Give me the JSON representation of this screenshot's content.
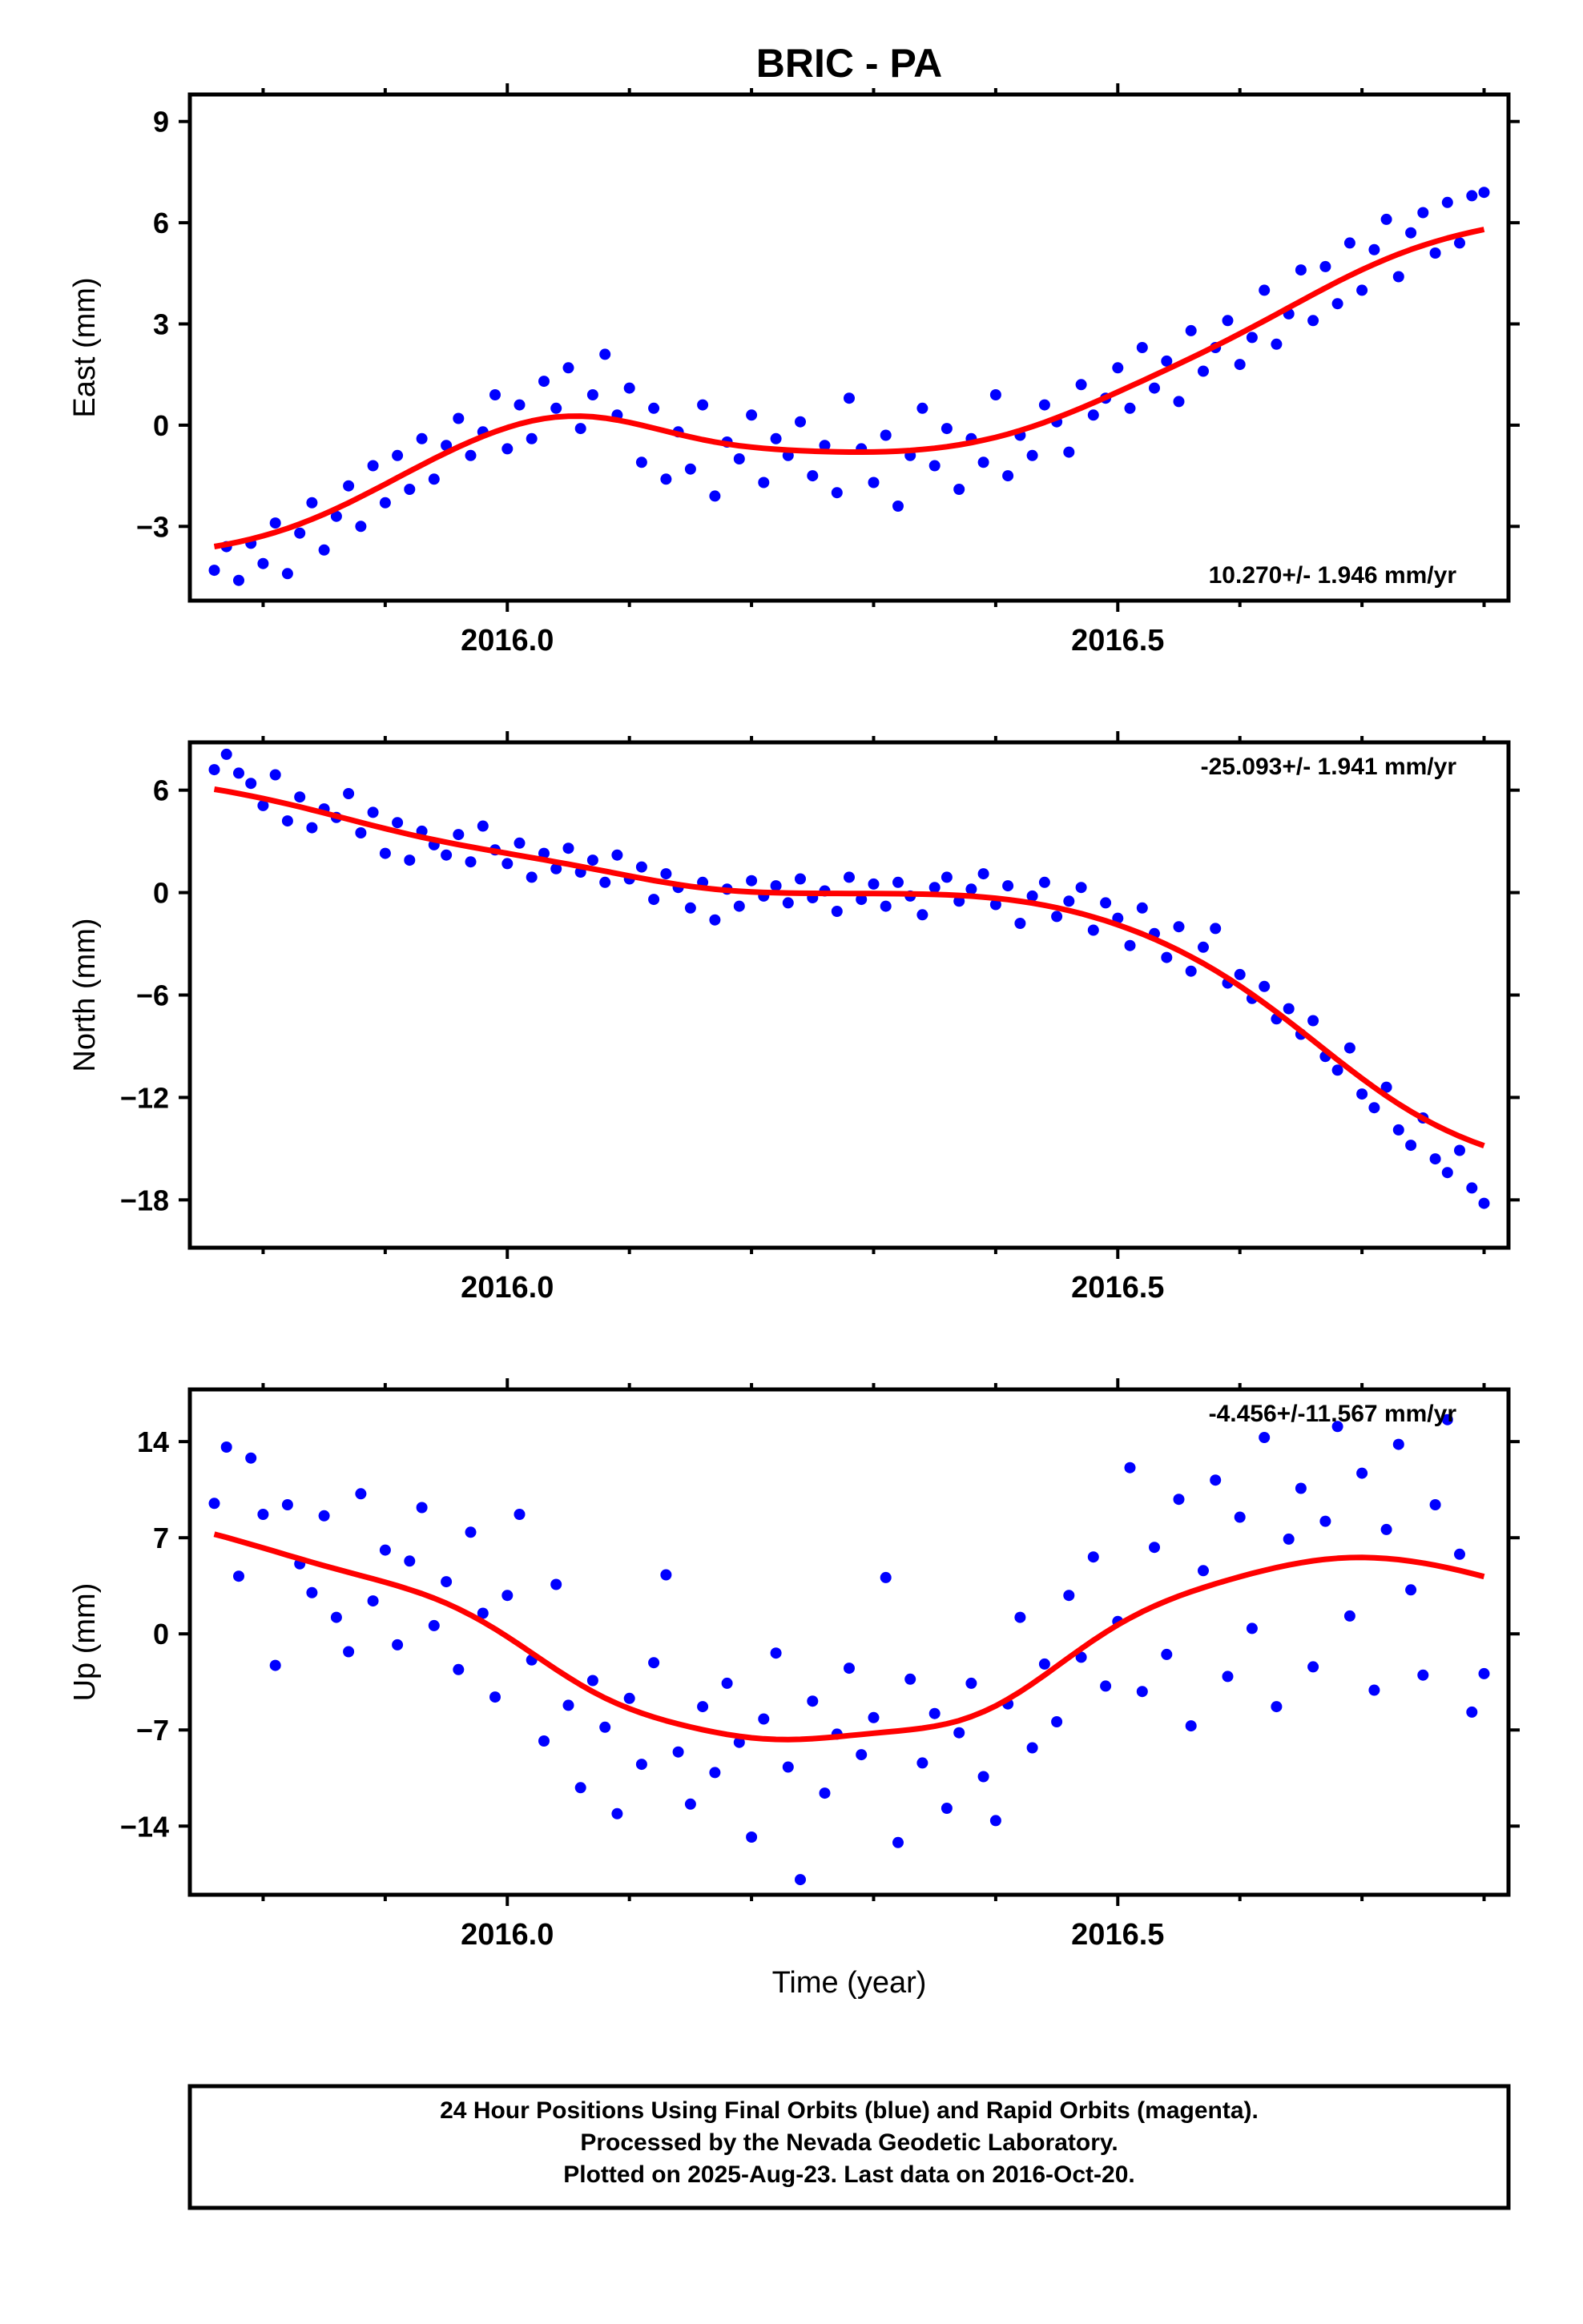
{
  "title": "BRIC - PA",
  "xlabel": "Time (year)",
  "footer": [
    "24 Hour Positions Using Final Orbits (blue) and Rapid Orbits (magenta).",
    "Processed by the Nevada Geodetic Laboratory.",
    "Plotted on 2025-Aug-23. Last data on 2016-Oct-20."
  ],
  "colors": {
    "points": "#0000ff",
    "fit": "#ff0000",
    "frame": "#000000"
  },
  "chart_data": [
    {
      "type": "scatter",
      "ylabel": "East (mm)",
      "rate_label": "10.270+/- 1.946 mm/yr",
      "xlim": [
        2015.74,
        2016.82
      ],
      "ylim": [
        -5.2,
        9.8
      ],
      "yticks": [
        -3,
        0,
        3,
        6,
        9
      ],
      "ytick_labels": [
        "−3",
        "0",
        "3",
        "6",
        "9"
      ],
      "xticks": [
        2016.0,
        2016.5
      ],
      "xtick_labels": [
        "2016.0",
        "2016.5"
      ],
      "grid": false,
      "x": [
        2015.76,
        2015.77,
        2015.78,
        2015.79,
        2015.8,
        2015.81,
        2015.82,
        2015.83,
        2015.84,
        2015.85,
        2015.86,
        2015.87,
        2015.88,
        2015.89,
        2015.9,
        2015.91,
        2015.92,
        2015.93,
        2015.94,
        2015.95,
        2015.96,
        2015.97,
        2015.98,
        2015.99,
        2016.0,
        2016.01,
        2016.02,
        2016.03,
        2016.04,
        2016.05,
        2016.06,
        2016.07,
        2016.08,
        2016.09,
        2016.1,
        2016.11,
        2016.12,
        2016.13,
        2016.14,
        2016.15,
        2016.16,
        2016.17,
        2016.18,
        2016.19,
        2016.2,
        2016.21,
        2016.22,
        2016.23,
        2016.24,
        2016.25,
        2016.26,
        2016.27,
        2016.28,
        2016.29,
        2016.3,
        2016.31,
        2016.32,
        2016.33,
        2016.34,
        2016.35,
        2016.36,
        2016.37,
        2016.38,
        2016.39,
        2016.4,
        2016.41,
        2016.42,
        2016.43,
        2016.44,
        2016.45,
        2016.46,
        2016.47,
        2016.48,
        2016.49,
        2016.5,
        2016.51,
        2016.52,
        2016.53,
        2016.54,
        2016.55,
        2016.56,
        2016.57,
        2016.58,
        2016.59,
        2016.6,
        2016.61,
        2016.62,
        2016.63,
        2016.64,
        2016.65,
        2016.66,
        2016.67,
        2016.68,
        2016.69,
        2016.7,
        2016.71,
        2016.72,
        2016.73,
        2016.74,
        2016.75,
        2016.76,
        2016.77,
        2016.78,
        2016.79,
        2016.8
      ],
      "values": [
        -4.3,
        -3.6,
        -4.6,
        -3.5,
        -4.1,
        -2.9,
        -4.4,
        -3.2,
        -2.3,
        -3.7,
        -2.7,
        -1.8,
        -3.0,
        -1.2,
        -2.3,
        -0.9,
        -1.9,
        -0.4,
        -1.6,
        -0.6,
        0.2,
        -0.9,
        -0.2,
        0.9,
        -0.7,
        0.6,
        -0.4,
        1.3,
        0.5,
        1.7,
        -0.1,
        0.9,
        2.1,
        0.3,
        1.1,
        -1.1,
        0.5,
        -1.6,
        -0.2,
        -1.3,
        0.6,
        -2.1,
        -0.5,
        -1.0,
        0.3,
        -1.7,
        -0.4,
        -0.9,
        0.1,
        -1.5,
        -0.6,
        -2.0,
        0.8,
        -0.7,
        -1.7,
        -0.3,
        -2.4,
        -0.9,
        0.5,
        -1.2,
        -0.1,
        -1.9,
        -0.4,
        -1.1,
        0.9,
        -1.5,
        -0.3,
        -0.9,
        0.6,
        0.1,
        -0.8,
        1.2,
        0.3,
        0.8,
        1.7,
        0.5,
        2.3,
        1.1,
        1.9,
        0.7,
        2.8,
        1.6,
        2.3,
        3.1,
        1.8,
        2.6,
        4.0,
        2.4,
        3.3,
        4.6,
        3.1,
        4.7,
        3.6,
        5.4,
        4.0,
        5.2,
        6.1,
        4.4,
        5.7,
        6.3,
        5.1,
        6.6,
        5.4,
        6.8,
        6.9
      ]
    },
    {
      "type": "scatter",
      "ylabel": "North (mm)",
      "rate_label": "-25.093+/- 1.941 mm/yr",
      "xlim": [
        2015.74,
        2016.82
      ],
      "ylim": [
        -20.8,
        8.8
      ],
      "yticks": [
        -18,
        -12,
        -6,
        0,
        6
      ],
      "ytick_labels": [
        "−18",
        "−12",
        "−6",
        "0",
        "6"
      ],
      "xticks": [
        2016.0,
        2016.5
      ],
      "xtick_labels": [
        "2016.0",
        "2016.5"
      ],
      "grid": false,
      "x": [
        2015.76,
        2015.77,
        2015.78,
        2015.79,
        2015.8,
        2015.81,
        2015.82,
        2015.83,
        2015.84,
        2015.85,
        2015.86,
        2015.87,
        2015.88,
        2015.89,
        2015.9,
        2015.91,
        2015.92,
        2015.93,
        2015.94,
        2015.95,
        2015.96,
        2015.97,
        2015.98,
        2015.99,
        2016.0,
        2016.01,
        2016.02,
        2016.03,
        2016.04,
        2016.05,
        2016.06,
        2016.07,
        2016.08,
        2016.09,
        2016.1,
        2016.11,
        2016.12,
        2016.13,
        2016.14,
        2016.15,
        2016.16,
        2016.17,
        2016.18,
        2016.19,
        2016.2,
        2016.21,
        2016.22,
        2016.23,
        2016.24,
        2016.25,
        2016.26,
        2016.27,
        2016.28,
        2016.29,
        2016.3,
        2016.31,
        2016.32,
        2016.33,
        2016.34,
        2016.35,
        2016.36,
        2016.37,
        2016.38,
        2016.39,
        2016.4,
        2016.41,
        2016.42,
        2016.43,
        2016.44,
        2016.45,
        2016.46,
        2016.47,
        2016.48,
        2016.49,
        2016.5,
        2016.51,
        2016.52,
        2016.53,
        2016.54,
        2016.55,
        2016.56,
        2016.57,
        2016.58,
        2016.59,
        2016.6,
        2016.61,
        2016.62,
        2016.63,
        2016.64,
        2016.65,
        2016.66,
        2016.67,
        2016.68,
        2016.69,
        2016.7,
        2016.71,
        2016.72,
        2016.73,
        2016.74,
        2016.75,
        2016.76,
        2016.77,
        2016.78,
        2016.79,
        2016.8
      ],
      "values": [
        7.2,
        8.1,
        7.0,
        6.4,
        5.1,
        6.9,
        4.2,
        5.6,
        3.8,
        4.9,
        4.4,
        5.8,
        3.5,
        4.7,
        2.3,
        4.1,
        1.9,
        3.6,
        2.8,
        2.2,
        3.4,
        1.8,
        3.9,
        2.5,
        1.7,
        2.9,
        0.9,
        2.3,
        1.4,
        2.6,
        1.2,
        1.9,
        0.6,
        2.2,
        0.8,
        1.5,
        -0.4,
        1.1,
        0.3,
        -0.9,
        0.6,
        -1.6,
        0.2,
        -0.8,
        0.7,
        -0.2,
        0.4,
        -0.6,
        0.8,
        -0.3,
        0.1,
        -1.1,
        0.9,
        -0.4,
        0.5,
        -0.8,
        0.6,
        -0.2,
        -1.3,
        0.3,
        0.9,
        -0.5,
        0.2,
        1.1,
        -0.7,
        0.4,
        -1.8,
        -0.2,
        0.6,
        -1.4,
        -0.5,
        0.3,
        -2.2,
        -0.6,
        -1.5,
        -3.1,
        -0.9,
        -2.4,
        -3.8,
        -2.0,
        -4.6,
        -3.2,
        -2.1,
        -5.3,
        -4.8,
        -6.2,
        -5.5,
        -7.4,
        -6.8,
        -8.3,
        -7.5,
        -9.6,
        -10.4,
        -9.1,
        -11.8,
        -12.6,
        -11.4,
        -13.9,
        -14.8,
        -13.2,
        -15.6,
        -16.4,
        -15.1,
        -17.3,
        -18.2
      ]
    },
    {
      "type": "scatter",
      "ylabel": "Up (mm)",
      "rate_label": "-4.456+/-11.567 mm/yr",
      "xlim": [
        2015.74,
        2016.82
      ],
      "ylim": [
        -19.0,
        17.8
      ],
      "yticks": [
        -14,
        -7,
        0,
        7,
        14
      ],
      "ytick_labels": [
        "−14",
        "−7",
        "0",
        "7",
        "14"
      ],
      "xticks": [
        2016.0,
        2016.5
      ],
      "xtick_labels": [
        "2016.0",
        "2016.5"
      ],
      "grid": false,
      "x": [
        2015.76,
        2015.77,
        2015.78,
        2015.79,
        2015.8,
        2015.81,
        2015.82,
        2015.83,
        2015.84,
        2015.85,
        2015.86,
        2015.87,
        2015.88,
        2015.89,
        2015.9,
        2015.91,
        2015.92,
        2015.93,
        2015.94,
        2015.95,
        2015.96,
        2015.97,
        2015.98,
        2015.99,
        2016.0,
        2016.01,
        2016.02,
        2016.03,
        2016.04,
        2016.05,
        2016.06,
        2016.07,
        2016.08,
        2016.09,
        2016.1,
        2016.11,
        2016.12,
        2016.13,
        2016.14,
        2016.15,
        2016.16,
        2016.17,
        2016.18,
        2016.19,
        2016.2,
        2016.21,
        2016.22,
        2016.23,
        2016.24,
        2016.25,
        2016.26,
        2016.27,
        2016.28,
        2016.29,
        2016.3,
        2016.31,
        2016.32,
        2016.33,
        2016.34,
        2016.35,
        2016.36,
        2016.37,
        2016.38,
        2016.39,
        2016.4,
        2016.41,
        2016.42,
        2016.43,
        2016.44,
        2016.45,
        2016.46,
        2016.47,
        2016.48,
        2016.49,
        2016.5,
        2016.51,
        2016.52,
        2016.53,
        2016.54,
        2016.55,
        2016.56,
        2016.57,
        2016.58,
        2016.59,
        2016.6,
        2016.61,
        2016.62,
        2016.63,
        2016.64,
        2016.65,
        2016.66,
        2016.67,
        2016.68,
        2016.69,
        2016.7,
        2016.71,
        2016.72,
        2016.73,
        2016.74,
        2016.75,
        2016.76,
        2016.77,
        2016.78,
        2016.79,
        2016.8
      ],
      "values": [
        9.5,
        13.6,
        4.2,
        12.8,
        8.7,
        -2.3,
        9.4,
        5.1,
        3.0,
        8.6,
        1.2,
        -1.3,
        10.2,
        2.4,
        6.1,
        -0.8,
        5.3,
        9.2,
        0.6,
        3.8,
        -2.6,
        7.4,
        1.5,
        -4.6,
        2.8,
        8.7,
        -1.9,
        -7.8,
        3.6,
        -5.2,
        -11.2,
        -3.4,
        -6.8,
        -13.1,
        -4.7,
        -9.5,
        -2.1,
        4.3,
        -8.6,
        -12.4,
        -5.3,
        -10.1,
        -3.6,
        -7.9,
        -14.8,
        -6.2,
        -1.4,
        -9.7,
        -17.9,
        -4.9,
        -11.6,
        -7.3,
        -2.5,
        -8.8,
        -6.1,
        4.1,
        -15.2,
        -3.3,
        -9.4,
        -5.8,
        -12.7,
        -7.2,
        -3.6,
        -10.4,
        -13.6,
        -5.1,
        1.2,
        -8.3,
        -2.2,
        -6.4,
        2.8,
        -1.7,
        5.6,
        -3.8,
        0.9,
        12.1,
        -4.2,
        6.3,
        -1.5,
        9.8,
        -6.7,
        4.6,
        11.2,
        -3.1,
        8.5,
        0.4,
        14.3,
        -5.3,
        6.9,
        10.6,
        -2.4,
        8.2,
        15.1,
        1.3,
        11.7,
        -4.1,
        7.6,
        13.8,
        3.2,
        -3.0,
        9.4,
        15.6,
        5.8,
        -5.7,
        -2.9
      ]
    }
  ]
}
